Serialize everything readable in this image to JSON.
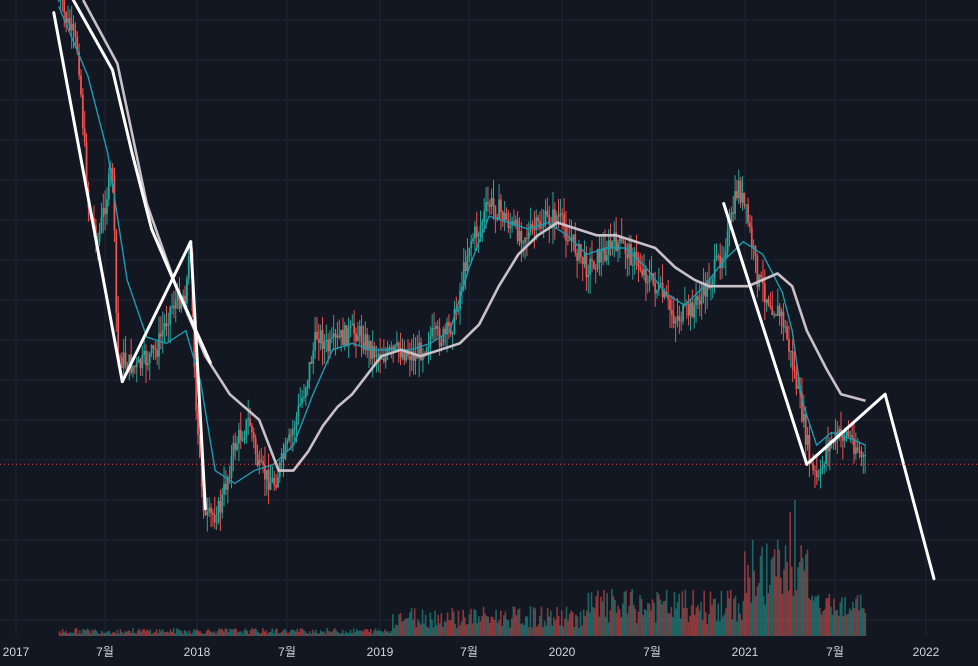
{
  "chart_data": {
    "type": "candlestick",
    "x_axis_labels": [
      "2017",
      "7월",
      "2018",
      "7월",
      "2019",
      "7월",
      "2020",
      "7월",
      "2021",
      "7월",
      "2022"
    ],
    "grid": true,
    "legend": "none",
    "colors": {
      "background": "#131722",
      "grid": "#1f2433",
      "up": "#26a69a",
      "down": "#ef5350",
      "ma_fast": "#c9c1c7",
      "ma_mid": "#1e9bb0",
      "trendlines": "#ffffff",
      "current_price_line": "#ef5350"
    },
    "price_path": [
      [
        0.06,
        0.0
      ],
      [
        0.08,
        0.08
      ],
      [
        0.09,
        0.32
      ],
      [
        0.1,
        0.38
      ],
      [
        0.11,
        0.3
      ],
      [
        0.115,
        0.26
      ],
      [
        0.12,
        0.56
      ],
      [
        0.14,
        0.58
      ],
      [
        0.16,
        0.55
      ],
      [
        0.175,
        0.48
      ],
      [
        0.19,
        0.46
      ],
      [
        0.195,
        0.38
      ],
      [
        0.2,
        0.65
      ],
      [
        0.21,
        0.82
      ],
      [
        0.225,
        0.8
      ],
      [
        0.24,
        0.7
      ],
      [
        0.255,
        0.66
      ],
      [
        0.265,
        0.74
      ],
      [
        0.28,
        0.76
      ],
      [
        0.295,
        0.7
      ],
      [
        0.31,
        0.62
      ],
      [
        0.325,
        0.52
      ],
      [
        0.335,
        0.55
      ],
      [
        0.35,
        0.53
      ],
      [
        0.365,
        0.52
      ],
      [
        0.38,
        0.55
      ],
      [
        0.395,
        0.56
      ],
      [
        0.41,
        0.55
      ],
      [
        0.425,
        0.56
      ],
      [
        0.44,
        0.53
      ],
      [
        0.455,
        0.53
      ],
      [
        0.465,
        0.5
      ],
      [
        0.48,
        0.38
      ],
      [
        0.49,
        0.36
      ],
      [
        0.5,
        0.32
      ],
      [
        0.51,
        0.33
      ],
      [
        0.525,
        0.36
      ],
      [
        0.54,
        0.37
      ],
      [
        0.555,
        0.35
      ],
      [
        0.57,
        0.34
      ],
      [
        0.585,
        0.38
      ],
      [
        0.6,
        0.42
      ],
      [
        0.615,
        0.4
      ],
      [
        0.63,
        0.38
      ],
      [
        0.645,
        0.4
      ],
      [
        0.66,
        0.43
      ],
      [
        0.675,
        0.46
      ],
      [
        0.69,
        0.5
      ],
      [
        0.705,
        0.49
      ],
      [
        0.72,
        0.46
      ],
      [
        0.735,
        0.41
      ],
      [
        0.745,
        0.37
      ],
      [
        0.755,
        0.29
      ],
      [
        0.765,
        0.35
      ],
      [
        0.775,
        0.44
      ],
      [
        0.79,
        0.48
      ],
      [
        0.8,
        0.5
      ],
      [
        0.81,
        0.57
      ],
      [
        0.82,
        0.65
      ],
      [
        0.83,
        0.74
      ],
      [
        0.838,
        0.76
      ],
      [
        0.845,
        0.7
      ],
      [
        0.855,
        0.69
      ],
      [
        0.865,
        0.68
      ],
      [
        0.875,
        0.7
      ],
      [
        0.885,
        0.73
      ]
    ],
    "moving_average_slow": [
      [
        0.085,
        0.0
      ],
      [
        0.12,
        0.1
      ],
      [
        0.15,
        0.32
      ],
      [
        0.18,
        0.45
      ],
      [
        0.21,
        0.56
      ],
      [
        0.235,
        0.62
      ],
      [
        0.265,
        0.66
      ],
      [
        0.285,
        0.74
      ],
      [
        0.3,
        0.74
      ],
      [
        0.315,
        0.71
      ],
      [
        0.33,
        0.67
      ],
      [
        0.345,
        0.64
      ],
      [
        0.36,
        0.62
      ],
      [
        0.375,
        0.59
      ],
      [
        0.39,
        0.56
      ],
      [
        0.41,
        0.55
      ],
      [
        0.43,
        0.56
      ],
      [
        0.45,
        0.55
      ],
      [
        0.47,
        0.54
      ],
      [
        0.49,
        0.51
      ],
      [
        0.51,
        0.45
      ],
      [
        0.53,
        0.4
      ],
      [
        0.55,
        0.37
      ],
      [
        0.57,
        0.35
      ],
      [
        0.59,
        0.36
      ],
      [
        0.61,
        0.37
      ],
      [
        0.63,
        0.37
      ],
      [
        0.65,
        0.38
      ],
      [
        0.67,
        0.39
      ],
      [
        0.69,
        0.42
      ],
      [
        0.71,
        0.44
      ],
      [
        0.725,
        0.45
      ],
      [
        0.745,
        0.45
      ],
      [
        0.765,
        0.45
      ],
      [
        0.78,
        0.44
      ],
      [
        0.795,
        0.43
      ],
      [
        0.81,
        0.45
      ],
      [
        0.825,
        0.52
      ],
      [
        0.845,
        0.58
      ],
      [
        0.86,
        0.62
      ],
      [
        0.885,
        0.63
      ]
    ],
    "moving_average_mid": [
      [
        0.06,
        0.01
      ],
      [
        0.09,
        0.12
      ],
      [
        0.11,
        0.24
      ],
      [
        0.13,
        0.44
      ],
      [
        0.15,
        0.53
      ],
      [
        0.17,
        0.54
      ],
      [
        0.19,
        0.52
      ],
      [
        0.205,
        0.6
      ],
      [
        0.22,
        0.74
      ],
      [
        0.24,
        0.76
      ],
      [
        0.26,
        0.74
      ],
      [
        0.28,
        0.73
      ],
      [
        0.3,
        0.7
      ],
      [
        0.32,
        0.62
      ],
      [
        0.34,
        0.55
      ],
      [
        0.36,
        0.54
      ],
      [
        0.38,
        0.55
      ],
      [
        0.4,
        0.55
      ],
      [
        0.42,
        0.55
      ],
      [
        0.44,
        0.54
      ],
      [
        0.46,
        0.52
      ],
      [
        0.48,
        0.42
      ],
      [
        0.5,
        0.34
      ],
      [
        0.52,
        0.35
      ],
      [
        0.54,
        0.36
      ],
      [
        0.56,
        0.35
      ],
      [
        0.58,
        0.37
      ],
      [
        0.6,
        0.4
      ],
      [
        0.62,
        0.39
      ],
      [
        0.64,
        0.39
      ],
      [
        0.66,
        0.42
      ],
      [
        0.68,
        0.46
      ],
      [
        0.7,
        0.48
      ],
      [
        0.72,
        0.45
      ],
      [
        0.74,
        0.41
      ],
      [
        0.76,
        0.38
      ],
      [
        0.78,
        0.4
      ],
      [
        0.8,
        0.46
      ],
      [
        0.81,
        0.52
      ],
      [
        0.82,
        0.63
      ],
      [
        0.835,
        0.7
      ],
      [
        0.85,
        0.68
      ],
      [
        0.87,
        0.69
      ],
      [
        0.885,
        0.7
      ]
    ],
    "trendlines": [
      [
        [
          0.055,
          0.02
        ],
        [
          0.125,
          0.6
        ]
      ],
      [
        [
          0.125,
          0.6
        ],
        [
          0.195,
          0.38
        ]
      ],
      [
        [
          0.195,
          0.38
        ],
        [
          0.21,
          0.8
        ]
      ],
      [
        [
          0.075,
          0.0
        ],
        [
          0.115,
          0.11
        ],
        [
          0.135,
          0.24
        ],
        [
          0.155,
          0.36
        ],
        [
          0.18,
          0.45
        ],
        [
          0.215,
          0.57
        ]
      ],
      [
        [
          0.74,
          0.32
        ],
        [
          0.825,
          0.73
        ]
      ],
      [
        [
          0.825,
          0.73
        ],
        [
          0.905,
          0.62
        ]
      ],
      [
        [
          0.905,
          0.62
        ],
        [
          0.955,
          0.91
        ]
      ]
    ],
    "current_price_level": 0.73,
    "volume_start": 0.06,
    "volume_end": 0.885,
    "volume_peak_range": [
      0.76,
      0.83
    ]
  }
}
